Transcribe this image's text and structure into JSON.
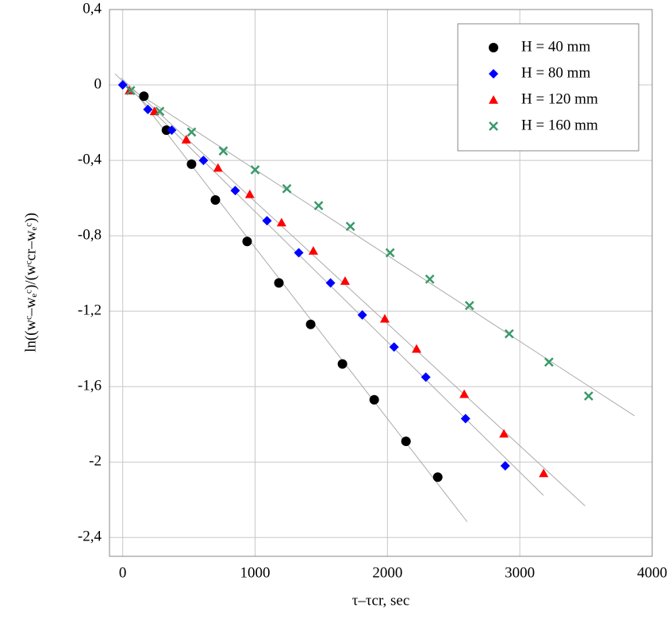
{
  "chart_data": {
    "type": "scatter",
    "xlabel": "τ–τcr, sec",
    "ylabel": "ln((wᶜ–wₑᶜ)/(wᶜcr–wₑᶜ))",
    "xlim": [
      -100,
      4000
    ],
    "ylim": [
      -2.5,
      0.4
    ],
    "xticks": [
      0,
      1000,
      2000,
      3000,
      4000
    ],
    "yticks": [
      {
        "value": 0.4,
        "label": "0,4"
      },
      0,
      {
        "value": -0.4,
        "label": "-0,4"
      },
      {
        "value": -0.8,
        "label": "-0,8"
      },
      {
        "value": -1.2,
        "label": "-1,2"
      },
      {
        "value": -1.6,
        "label": "-1,6"
      },
      -2,
      {
        "value": -2.4,
        "label": "-2,4"
      }
    ],
    "grid": true,
    "legend": "upper right",
    "fit_lines": true,
    "series": [
      {
        "name": "H = 40 mm",
        "color": "#000000",
        "marker": "circle",
        "x": [
          160,
          330,
          520,
          700,
          940,
          1180,
          1420,
          1660,
          1900,
          2140,
          2380
        ],
        "values": [
          -0.06,
          -0.24,
          -0.42,
          -0.61,
          -0.83,
          -1.05,
          -1.27,
          -1.48,
          -1.67,
          -1.89,
          -2.08
        ]
      },
      {
        "name": "H = 80 mm",
        "color": "#0000ff",
        "marker": "diamond",
        "x": [
          0,
          190,
          370,
          610,
          850,
          1090,
          1330,
          1570,
          1810,
          2050,
          2290,
          2590,
          2890
        ],
        "values": [
          0,
          -0.13,
          -0.24,
          -0.4,
          -0.56,
          -0.72,
          -0.89,
          -1.05,
          -1.22,
          -1.39,
          -1.55,
          -1.77,
          -2.02
        ]
      },
      {
        "name": "H = 120 mm",
        "color": "#ff0000",
        "marker": "triangle",
        "x": [
          50,
          240,
          480,
          720,
          960,
          1200,
          1440,
          1680,
          1980,
          2220,
          2580,
          2880,
          3180
        ],
        "values": [
          -0.03,
          -0.14,
          -0.29,
          -0.44,
          -0.58,
          -0.73,
          -0.88,
          -1.04,
          -1.24,
          -1.4,
          -1.64,
          -1.85,
          -2.06
        ]
      },
      {
        "name": "H = 160 mm",
        "color": "#3a9a6a",
        "marker": "x",
        "x": [
          60,
          280,
          520,
          760,
          1000,
          1240,
          1480,
          1720,
          2020,
          2320,
          2620,
          2920,
          3220,
          3520
        ],
        "values": [
          -0.03,
          -0.14,
          -0.25,
          -0.35,
          -0.45,
          -0.55,
          -0.64,
          -0.75,
          -0.89,
          -1.03,
          -1.17,
          -1.32,
          -1.47,
          -1.65
        ]
      }
    ]
  }
}
